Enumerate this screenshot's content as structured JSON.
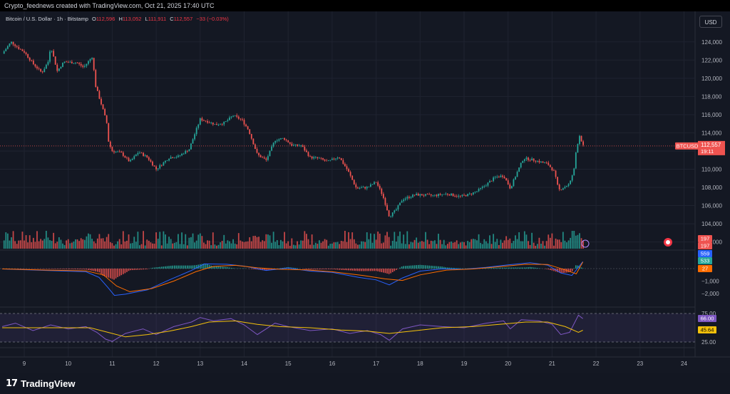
{
  "header": {
    "caption": "Crypto_feednews created with TradingView.com, Oct 21, 2025 17:40 UTC"
  },
  "legend": {
    "symbol": "Bitcoin / U.S. Dollar · 1h · Bitstamp",
    "open_label": "O",
    "open": "112,596",
    "high_label": "H",
    "high": "113,052",
    "low_label": "L",
    "low": "111,911",
    "close_label": "C",
    "close": "112,557",
    "change": "−33 (−0.03%)"
  },
  "currency_button": "USD",
  "price_tag": {
    "symbol": "BTCUSD",
    "price": "112,557",
    "countdown": "19:11"
  },
  "volume_tags": [
    "197",
    "197"
  ],
  "macd_tags": [
    "559",
    "533",
    "27"
  ],
  "rsi_tags": [
    "66.00",
    "45.64"
  ],
  "rsi_levels": [
    "75.00",
    "25.00"
  ],
  "logo_text": "TradingView",
  "colors": {
    "up": "#26a69a",
    "down": "#ef5350",
    "macd_line": "#2962ff",
    "signal_line": "#ff6d00",
    "rsi_line": "#7e57c2",
    "rsi_ma": "#f5c20b",
    "background": "#131722"
  },
  "chart_data": [
    {
      "type": "candlestick",
      "title": "Bitcoin / U.S. Dollar · 1h · Bitstamp",
      "timeframe": "1h",
      "x_tick_labels": [
        "9",
        "10",
        "11",
        "12",
        "13",
        "14",
        "15",
        "16",
        "17",
        "18",
        "19",
        "20",
        "21",
        "22",
        "23",
        "24"
      ],
      "y_tick_labels": [
        "124,000",
        "122,000",
        "120,000",
        "118,000",
        "116,000",
        "114,000",
        "112,000",
        "110,000",
        "108,000",
        "106,000",
        "104,000",
        "102,000"
      ],
      "ylim": [
        101500,
        125000
      ],
      "last_price": 112557,
      "close_path": [
        {
          "day": 8.5,
          "price": 122700
        },
        {
          "day": 8.7,
          "price": 124000
        },
        {
          "day": 8.9,
          "price": 123200
        },
        {
          "day": 9.0,
          "price": 122900
        },
        {
          "day": 9.2,
          "price": 121600
        },
        {
          "day": 9.4,
          "price": 120600
        },
        {
          "day": 9.55,
          "price": 121900
        },
        {
          "day": 9.6,
          "price": 123600
        },
        {
          "day": 9.75,
          "price": 120800
        },
        {
          "day": 9.9,
          "price": 121800
        },
        {
          "day": 10.2,
          "price": 121700
        },
        {
          "day": 10.35,
          "price": 121200
        },
        {
          "day": 10.55,
          "price": 122400
        },
        {
          "day": 10.62,
          "price": 119200
        },
        {
          "day": 10.8,
          "price": 116400
        },
        {
          "day": 10.88,
          "price": 115000
        },
        {
          "day": 10.92,
          "price": 112900
        },
        {
          "day": 11.0,
          "price": 112000
        },
        {
          "day": 11.2,
          "price": 111800
        },
        {
          "day": 11.4,
          "price": 110800
        },
        {
          "day": 11.6,
          "price": 111900
        },
        {
          "day": 11.8,
          "price": 111300
        },
        {
          "day": 12.0,
          "price": 110000
        },
        {
          "day": 12.3,
          "price": 111300
        },
        {
          "day": 12.5,
          "price": 111400
        },
        {
          "day": 12.75,
          "price": 112200
        },
        {
          "day": 12.9,
          "price": 114200
        },
        {
          "day": 13.0,
          "price": 115500
        },
        {
          "day": 13.2,
          "price": 115200
        },
        {
          "day": 13.35,
          "price": 114900
        },
        {
          "day": 13.55,
          "price": 115100
        },
        {
          "day": 13.75,
          "price": 115900
        },
        {
          "day": 13.95,
          "price": 115400
        },
        {
          "day": 14.1,
          "price": 114300
        },
        {
          "day": 14.3,
          "price": 111600
        },
        {
          "day": 14.5,
          "price": 111000
        },
        {
          "day": 14.7,
          "price": 113200
        },
        {
          "day": 14.9,
          "price": 113400
        },
        {
          "day": 15.1,
          "price": 112600
        },
        {
          "day": 15.3,
          "price": 112600
        },
        {
          "day": 15.5,
          "price": 111300
        },
        {
          "day": 15.7,
          "price": 111200
        },
        {
          "day": 15.9,
          "price": 110800
        },
        {
          "day": 16.15,
          "price": 111400
        },
        {
          "day": 16.35,
          "price": 109900
        },
        {
          "day": 16.55,
          "price": 107900
        },
        {
          "day": 16.8,
          "price": 108000
        },
        {
          "day": 17.0,
          "price": 108600
        },
        {
          "day": 17.15,
          "price": 107100
        },
        {
          "day": 17.3,
          "price": 104800
        },
        {
          "day": 17.45,
          "price": 105500
        },
        {
          "day": 17.6,
          "price": 106700
        },
        {
          "day": 17.9,
          "price": 107200
        },
        {
          "day": 18.3,
          "price": 107100
        },
        {
          "day": 18.6,
          "price": 107300
        },
        {
          "day": 18.9,
          "price": 107000
        },
        {
          "day": 19.1,
          "price": 107200
        },
        {
          "day": 19.3,
          "price": 107600
        },
        {
          "day": 19.5,
          "price": 108300
        },
        {
          "day": 19.7,
          "price": 109100
        },
        {
          "day": 19.9,
          "price": 109300
        },
        {
          "day": 20.05,
          "price": 107900
        },
        {
          "day": 20.2,
          "price": 109600
        },
        {
          "day": 20.35,
          "price": 111200
        },
        {
          "day": 20.6,
          "price": 111000
        },
        {
          "day": 20.8,
          "price": 110700
        },
        {
          "day": 20.9,
          "price": 110600
        },
        {
          "day": 21.05,
          "price": 109700
        },
        {
          "day": 21.15,
          "price": 107700
        },
        {
          "day": 21.3,
          "price": 108100
        },
        {
          "day": 21.4,
          "price": 108400
        },
        {
          "day": 21.5,
          "price": 110000
        },
        {
          "day": 21.55,
          "price": 112200
        },
        {
          "day": 21.63,
          "price": 113800
        },
        {
          "day": 21.7,
          "price": 112557
        }
      ]
    },
    {
      "type": "bar",
      "title": "Volume",
      "last_value_labels": [
        "197",
        "197"
      ]
    },
    {
      "type": "line",
      "title": "MACD",
      "y_tick_labels": [
        "0",
        "−1,000",
        "−2,000"
      ],
      "ylim": [
        -2800,
        1200
      ],
      "series": [
        {
          "name": "MACD",
          "last": "559",
          "points": [
            {
              "day": 8.5,
              "v": -30
            },
            {
              "day": 9.5,
              "v": -150
            },
            {
              "day": 10.4,
              "v": -250
            },
            {
              "day": 10.7,
              "v": -700
            },
            {
              "day": 10.9,
              "v": -1500
            },
            {
              "day": 11.05,
              "v": -2150
            },
            {
              "day": 11.3,
              "v": -2050
            },
            {
              "day": 11.8,
              "v": -1700
            },
            {
              "day": 12.3,
              "v": -900
            },
            {
              "day": 12.8,
              "v": -150
            },
            {
              "day": 13.1,
              "v": 380
            },
            {
              "day": 13.6,
              "v": 350
            },
            {
              "day": 14.0,
              "v": 200
            },
            {
              "day": 14.5,
              "v": -150
            },
            {
              "day": 15.0,
              "v": 50
            },
            {
              "day": 15.5,
              "v": -200
            },
            {
              "day": 16.0,
              "v": -300
            },
            {
              "day": 16.6,
              "v": -700
            },
            {
              "day": 17.0,
              "v": -900
            },
            {
              "day": 17.3,
              "v": -1300
            },
            {
              "day": 17.6,
              "v": -750
            },
            {
              "day": 18.0,
              "v": -200
            },
            {
              "day": 18.5,
              "v": -20
            },
            {
              "day": 19.0,
              "v": -50
            },
            {
              "day": 19.5,
              "v": 100
            },
            {
              "day": 20.0,
              "v": 300
            },
            {
              "day": 20.5,
              "v": 470
            },
            {
              "day": 20.9,
              "v": 280
            },
            {
              "day": 21.2,
              "v": -350
            },
            {
              "day": 21.45,
              "v": -550
            },
            {
              "day": 21.7,
              "v": 559
            }
          ]
        },
        {
          "name": "Signal",
          "last": "533",
          "points": [
            {
              "day": 8.5,
              "v": -20
            },
            {
              "day": 9.5,
              "v": -120
            },
            {
              "day": 10.4,
              "v": -180
            },
            {
              "day": 10.8,
              "v": -500
            },
            {
              "day": 11.1,
              "v": -1400
            },
            {
              "day": 11.4,
              "v": -1850
            },
            {
              "day": 11.9,
              "v": -1600
            },
            {
              "day": 12.4,
              "v": -1000
            },
            {
              "day": 12.9,
              "v": -250
            },
            {
              "day": 13.3,
              "v": 180
            },
            {
              "day": 13.8,
              "v": 260
            },
            {
              "day": 14.3,
              "v": 60
            },
            {
              "day": 14.8,
              "v": -50
            },
            {
              "day": 15.4,
              "v": -100
            },
            {
              "day": 16.0,
              "v": -250
            },
            {
              "day": 16.7,
              "v": -550
            },
            {
              "day": 17.2,
              "v": -820
            },
            {
              "day": 17.6,
              "v": -950
            },
            {
              "day": 18.0,
              "v": -500
            },
            {
              "day": 18.6,
              "v": -120
            },
            {
              "day": 19.2,
              "v": -30
            },
            {
              "day": 19.8,
              "v": 150
            },
            {
              "day": 20.4,
              "v": 350
            },
            {
              "day": 20.9,
              "v": 330
            },
            {
              "day": 21.3,
              "v": -100
            },
            {
              "day": 21.55,
              "v": -420
            },
            {
              "day": 21.7,
              "v": 533
            }
          ]
        },
        {
          "name": "Histogram",
          "last": "27"
        }
      ]
    },
    {
      "type": "line",
      "title": "RSI",
      "y_tick_labels": [
        "75.00",
        "25.00"
      ],
      "ylim": [
        20,
        80
      ],
      "series": [
        {
          "name": "RSI",
          "last": "66.00",
          "points": [
            {
              "day": 8.5,
              "v": 52
            },
            {
              "day": 8.8,
              "v": 58
            },
            {
              "day": 9.2,
              "v": 45
            },
            {
              "day": 9.6,
              "v": 55
            },
            {
              "day": 10.0,
              "v": 48
            },
            {
              "day": 10.4,
              "v": 52
            },
            {
              "day": 10.65,
              "v": 42
            },
            {
              "day": 10.85,
              "v": 30
            },
            {
              "day": 11.0,
              "v": 26
            },
            {
              "day": 11.3,
              "v": 40
            },
            {
              "day": 11.7,
              "v": 48
            },
            {
              "day": 12.0,
              "v": 38
            },
            {
              "day": 12.4,
              "v": 52
            },
            {
              "day": 12.8,
              "v": 60
            },
            {
              "day": 13.0,
              "v": 68
            },
            {
              "day": 13.3,
              "v": 62
            },
            {
              "day": 13.7,
              "v": 66
            },
            {
              "day": 14.0,
              "v": 55
            },
            {
              "day": 14.3,
              "v": 38
            },
            {
              "day": 14.7,
              "v": 58
            },
            {
              "day": 15.0,
              "v": 52
            },
            {
              "day": 15.5,
              "v": 45
            },
            {
              "day": 16.0,
              "v": 48
            },
            {
              "day": 16.4,
              "v": 40
            },
            {
              "day": 16.8,
              "v": 45
            },
            {
              "day": 17.1,
              "v": 38
            },
            {
              "day": 17.3,
              "v": 28
            },
            {
              "day": 17.6,
              "v": 48
            },
            {
              "day": 18.0,
              "v": 55
            },
            {
              "day": 18.5,
              "v": 52
            },
            {
              "day": 19.0,
              "v": 50
            },
            {
              "day": 19.5,
              "v": 58
            },
            {
              "day": 19.9,
              "v": 62
            },
            {
              "day": 20.05,
              "v": 48
            },
            {
              "day": 20.3,
              "v": 64
            },
            {
              "day": 20.7,
              "v": 62
            },
            {
              "day": 21.0,
              "v": 56
            },
            {
              "day": 21.2,
              "v": 38
            },
            {
              "day": 21.4,
              "v": 42
            },
            {
              "day": 21.6,
              "v": 72
            },
            {
              "day": 21.7,
              "v": 66
            }
          ]
        },
        {
          "name": "RSI MA",
          "last": "45.64",
          "points": [
            {
              "day": 8.5,
              "v": 50
            },
            {
              "day": 9.5,
              "v": 50
            },
            {
              "day": 10.5,
              "v": 50
            },
            {
              "day": 10.9,
              "v": 42
            },
            {
              "day": 11.3,
              "v": 34
            },
            {
              "day": 11.8,
              "v": 38
            },
            {
              "day": 12.3,
              "v": 44
            },
            {
              "day": 12.8,
              "v": 52
            },
            {
              "day": 13.2,
              "v": 60
            },
            {
              "day": 13.8,
              "v": 62
            },
            {
              "day": 14.3,
              "v": 56
            },
            {
              "day": 14.8,
              "v": 52
            },
            {
              "day": 15.5,
              "v": 50
            },
            {
              "day": 16.2,
              "v": 46
            },
            {
              "day": 16.8,
              "v": 44
            },
            {
              "day": 17.3,
              "v": 40
            },
            {
              "day": 17.8,
              "v": 44
            },
            {
              "day": 18.5,
              "v": 50
            },
            {
              "day": 19.2,
              "v": 52
            },
            {
              "day": 19.8,
              "v": 56
            },
            {
              "day": 20.4,
              "v": 60
            },
            {
              "day": 20.9,
              "v": 60
            },
            {
              "day": 21.3,
              "v": 52
            },
            {
              "day": 21.6,
              "v": 42
            },
            {
              "day": 21.7,
              "v": 45.64
            }
          ]
        }
      ]
    }
  ]
}
